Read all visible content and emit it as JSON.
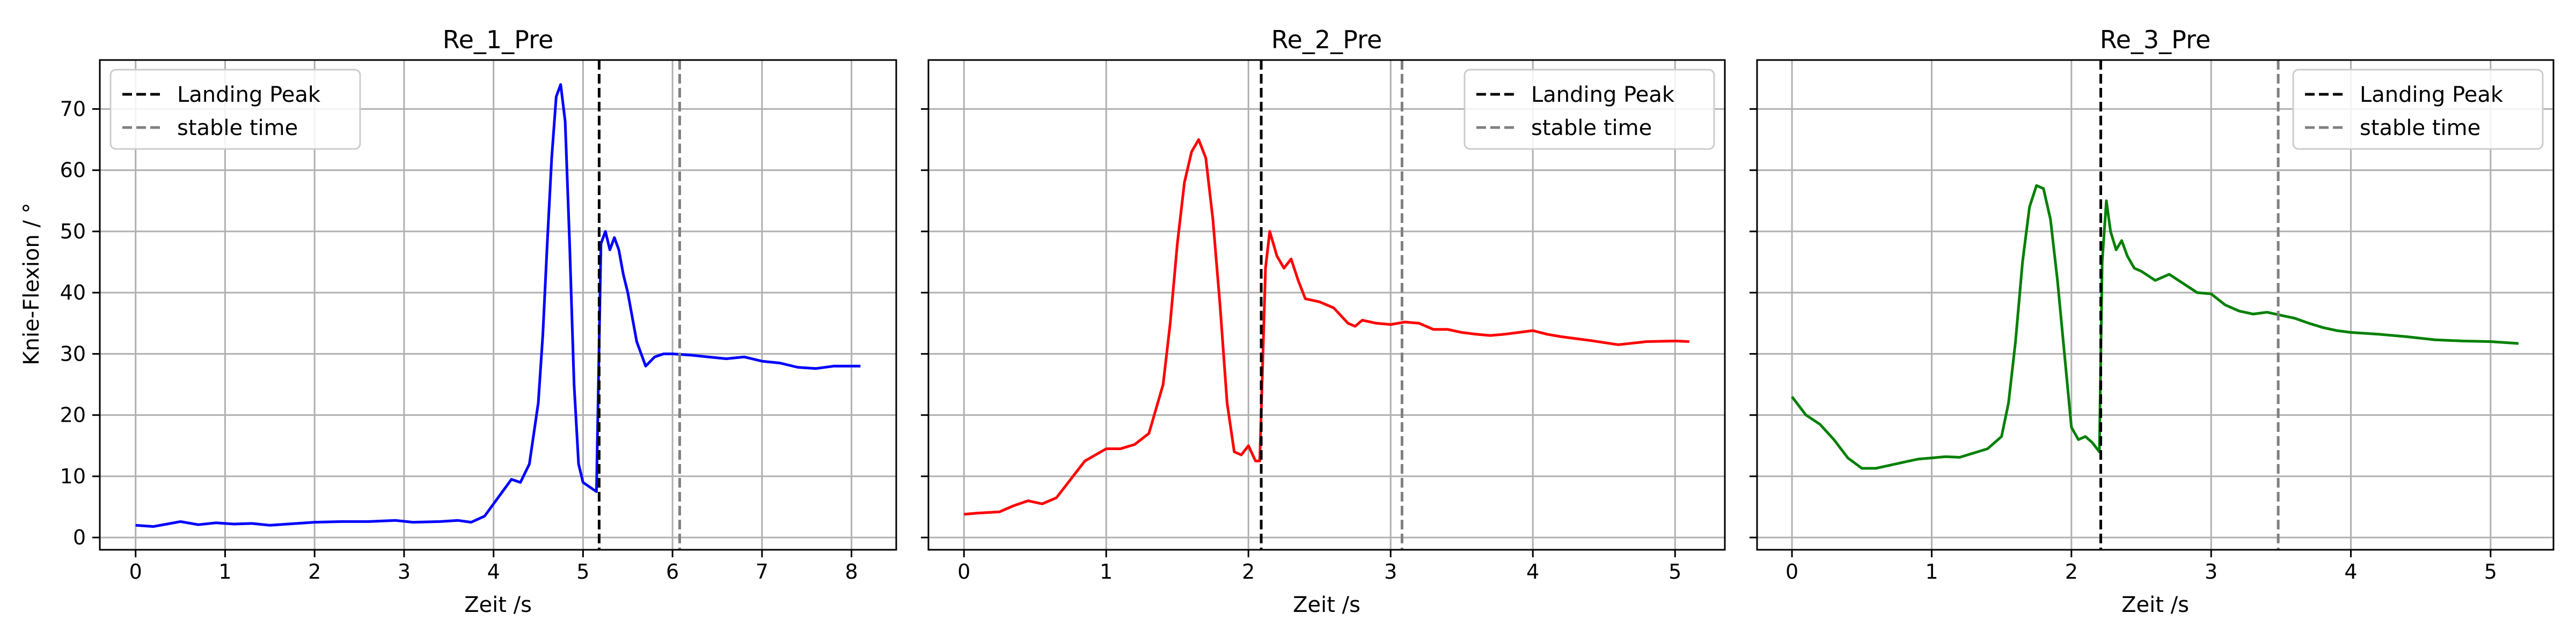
{
  "figure": {
    "shared_ylabel": "Knie-Flexion / °"
  },
  "chart_data": [
    {
      "type": "line",
      "title": "Re_1_Pre",
      "xlabel": "Zeit /s",
      "ylabel": "Knie-Flexion / °",
      "xlim": [
        -0.4,
        8.5
      ],
      "ylim": [
        -2,
        78
      ],
      "xticks": [
        0,
        1,
        2,
        3,
        4,
        5,
        6,
        7,
        8
      ],
      "yticks": [
        0,
        10,
        20,
        30,
        40,
        50,
        60,
        70
      ],
      "grid": true,
      "legend": {
        "placement": "top-left",
        "entries": [
          "Landing Peak",
          "stable time"
        ]
      },
      "colors": {
        "series": "#0000ff",
        "landing_peak": "#000000",
        "stable_time": "#808080"
      },
      "series": [
        {
          "x": [
            0,
            0.2,
            0.35,
            0.5,
            0.7,
            0.9,
            1.1,
            1.3,
            1.5,
            1.7,
            2.0,
            2.3,
            2.6,
            2.9,
            3.1,
            3.4,
            3.6,
            3.75,
            3.9,
            4.0,
            4.1,
            4.2,
            4.3,
            4.4,
            4.5,
            4.55,
            4.6,
            4.65,
            4.7,
            4.75,
            4.8,
            4.85,
            4.9,
            4.95,
            5.0,
            5.1,
            5.15,
            5.2,
            5.25,
            5.3,
            5.35,
            5.4,
            5.45,
            5.5,
            5.6,
            5.7,
            5.8,
            5.9,
            6.0,
            6.2,
            6.4,
            6.6,
            6.8,
            7.0,
            7.2,
            7.4,
            7.6,
            7.8,
            8.1
          ],
          "y": [
            2,
            1.8,
            2.2,
            2.6,
            2.1,
            2.4,
            2.2,
            2.3,
            2.0,
            2.2,
            2.5,
            2.6,
            2.6,
            2.8,
            2.5,
            2.6,
            2.8,
            2.5,
            3.5,
            5.5,
            7.5,
            9.5,
            9.0,
            12,
            22,
            33,
            48,
            62,
            72,
            74,
            68,
            48,
            25,
            12,
            9,
            8,
            7.5,
            48,
            50,
            47,
            49,
            47,
            43,
            40,
            32,
            28,
            29.5,
            30,
            30,
            29.8,
            29.5,
            29.2,
            29.5,
            28.8,
            28.5,
            27.8,
            27.6,
            28,
            28
          ]
        }
      ],
      "vlines": {
        "landing_peak": 5.18,
        "stable_time": 6.08
      }
    },
    {
      "type": "line",
      "title": "Re_2_Pre",
      "xlabel": "Zeit /s",
      "ylabel": "",
      "xlim": [
        -0.25,
        5.35
      ],
      "ylim": [
        -2,
        78
      ],
      "xticks": [
        0,
        1,
        2,
        3,
        4,
        5
      ],
      "yticks": [
        0,
        10,
        20,
        30,
        40,
        50,
        60,
        70
      ],
      "grid": true,
      "legend": {
        "placement": "top-right",
        "entries": [
          "Landing Peak",
          "stable time"
        ]
      },
      "colors": {
        "series": "#ff0000",
        "landing_peak": "#000000",
        "stable_time": "#808080"
      },
      "series": [
        {
          "x": [
            0,
            0.1,
            0.25,
            0.35,
            0.45,
            0.55,
            0.65,
            0.75,
            0.85,
            1.0,
            1.1,
            1.2,
            1.3,
            1.4,
            1.45,
            1.5,
            1.55,
            1.6,
            1.65,
            1.7,
            1.75,
            1.8,
            1.85,
            1.9,
            1.95,
            2.0,
            2.05,
            2.08,
            2.12,
            2.15,
            2.2,
            2.25,
            2.3,
            2.35,
            2.4,
            2.5,
            2.6,
            2.7,
            2.75,
            2.8,
            2.9,
            3.0,
            3.1,
            3.2,
            3.3,
            3.4,
            3.5,
            3.6,
            3.7,
            3.8,
            3.9,
            4.0,
            4.1,
            4.2,
            4.4,
            4.6,
            4.8,
            5.0,
            5.1
          ],
          "y": [
            3.8,
            4.0,
            4.2,
            5.2,
            6.0,
            5.5,
            6.5,
            9.5,
            12.5,
            14.5,
            14.5,
            15.2,
            17,
            25,
            35,
            48,
            58,
            63,
            65,
            62,
            52,
            38,
            22,
            14,
            13.5,
            15,
            12.5,
            12.5,
            44,
            50,
            46,
            44,
            45.5,
            42,
            39,
            38.5,
            37.5,
            35,
            34.5,
            35.5,
            35,
            34.8,
            35.2,
            35,
            34,
            34,
            33.5,
            33.2,
            33,
            33.2,
            33.5,
            33.8,
            33.2,
            32.8,
            32.2,
            31.5,
            32.0,
            32.1,
            32
          ]
        }
      ],
      "vlines": {
        "landing_peak": 2.09,
        "stable_time": 3.08
      }
    },
    {
      "type": "line",
      "title": "Re_3_Pre",
      "xlabel": "Zeit /s",
      "ylabel": "",
      "xlim": [
        -0.25,
        5.45
      ],
      "ylim": [
        -2,
        78
      ],
      "xticks": [
        0,
        1,
        2,
        3,
        4,
        5
      ],
      "yticks": [
        0,
        10,
        20,
        30,
        40,
        50,
        60,
        70
      ],
      "grid": true,
      "legend": {
        "placement": "top-right",
        "entries": [
          "Landing Peak",
          "stable time"
        ]
      },
      "colors": {
        "series": "#008000",
        "landing_peak": "#000000",
        "stable_time": "#808080"
      },
      "series": [
        {
          "x": [
            0,
            0.05,
            0.1,
            0.2,
            0.3,
            0.4,
            0.5,
            0.6,
            0.7,
            0.8,
            0.9,
            1.0,
            1.1,
            1.2,
            1.3,
            1.4,
            1.5,
            1.55,
            1.6,
            1.65,
            1.7,
            1.75,
            1.8,
            1.85,
            1.9,
            1.95,
            2.0,
            2.05,
            2.1,
            2.15,
            2.2,
            2.22,
            2.25,
            2.28,
            2.32,
            2.36,
            2.4,
            2.45,
            2.5,
            2.6,
            2.7,
            2.8,
            2.9,
            3.0,
            3.1,
            3.2,
            3.3,
            3.4,
            3.5,
            3.6,
            3.7,
            3.8,
            3.9,
            4.0,
            4.2,
            4.4,
            4.6,
            4.8,
            5.0,
            5.2
          ],
          "y": [
            23,
            21.5,
            20,
            18.5,
            16.0,
            13.0,
            11.3,
            11.3,
            11.8,
            12.3,
            12.8,
            13.0,
            13.2,
            13.1,
            13.8,
            14.5,
            16.5,
            22,
            32,
            45,
            54,
            57.5,
            57,
            52,
            42,
            30,
            18,
            16,
            16.5,
            15.5,
            14,
            45,
            55,
            50,
            47,
            48.5,
            46,
            44,
            43.5,
            42,
            43,
            41.5,
            40,
            39.8,
            38,
            37,
            36.5,
            36.8,
            36.3,
            35.8,
            35.0,
            34.3,
            33.8,
            33.5,
            33.2,
            32.8,
            32.3,
            32.1,
            32,
            31.7
          ]
        }
      ],
      "vlines": {
        "landing_peak": 2.21,
        "stable_time": 3.48
      }
    }
  ]
}
